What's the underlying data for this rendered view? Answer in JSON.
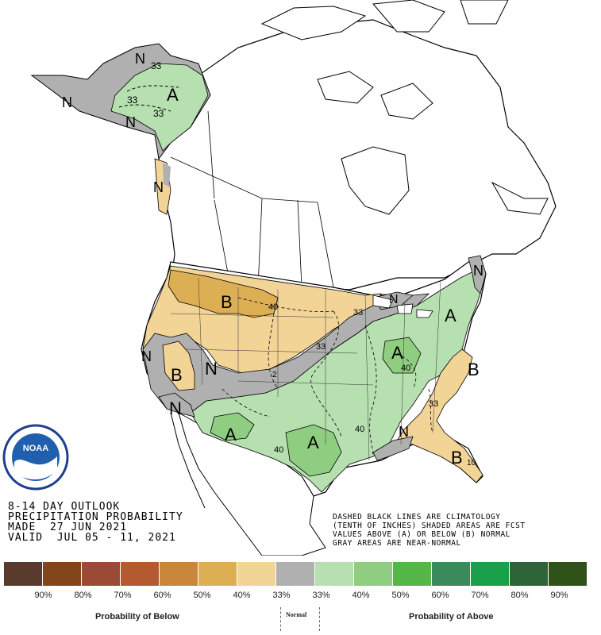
{
  "title": {
    "line1": "8-14 DAY OUTLOOK",
    "line2": "PRECIPITATION PROBABILITY",
    "line3": "MADE  27 JUN 2021",
    "line4": "VALID  JUL 05 - 11, 2021"
  },
  "note": {
    "line1": "DASHED BLACK LINES ARE CLIMATOLOGY",
    "line2": "(TENTH OF INCHES) SHADED AREAS ARE FCST",
    "line3": "VALUES ABOVE (A) OR BELOW (B) NORMAL",
    "line4": "GRAY AREAS ARE NEAR-NORMAL"
  },
  "logo": {
    "text": "NOAA",
    "icon": "noaa-logo"
  },
  "map_labels": {
    "ak_A": "A",
    "ak_33a": "33",
    "ak_33b": "33",
    "ak_33c": "33",
    "ak_N1": "N",
    "ak_N2": "N",
    "ak_N3": "N",
    "nw_N": "N",
    "b_north": "B",
    "b_west": "B",
    "b_se": "B",
    "b_fl": "B",
    "n_west": "N",
    "n_sw": "N",
    "n_ca": "N",
    "n_ne": "N",
    "n_gulf": "N",
    "n_mi": "N",
    "a_sw": "A",
    "a_tx": "A",
    "a_oh": "A",
    "a_ne": "A",
    "c40_mt": "40",
    "c33_nd": "33",
    "c33_ia": "33",
    "c40_oh": "40",
    "c40_tx": "40",
    "c40_la": "40",
    "c33_ga": "33",
    "c10_fl": "10",
    "c2_co": "2"
  },
  "legend": {
    "colors": [
      "#5a3a2c",
      "#83461c",
      "#9b4b35",
      "#b35a30",
      "#c9873c",
      "#dcaf55",
      "#f2d497",
      "#b0b0b0",
      "#b6e0b0",
      "#8fce80",
      "#55b748",
      "#3a8a5c",
      "#19a04a",
      "#2c6438",
      "#2f5218"
    ],
    "ticks": [
      "90%",
      "80%",
      "70%",
      "60%",
      "50%",
      "40%",
      "33%",
      "33%",
      "40%",
      "50%",
      "60%",
      "70%",
      "80%",
      "90%"
    ],
    "below_label": "Probability of Below",
    "normal_label": "Normal",
    "above_label": "Probability of Above"
  }
}
